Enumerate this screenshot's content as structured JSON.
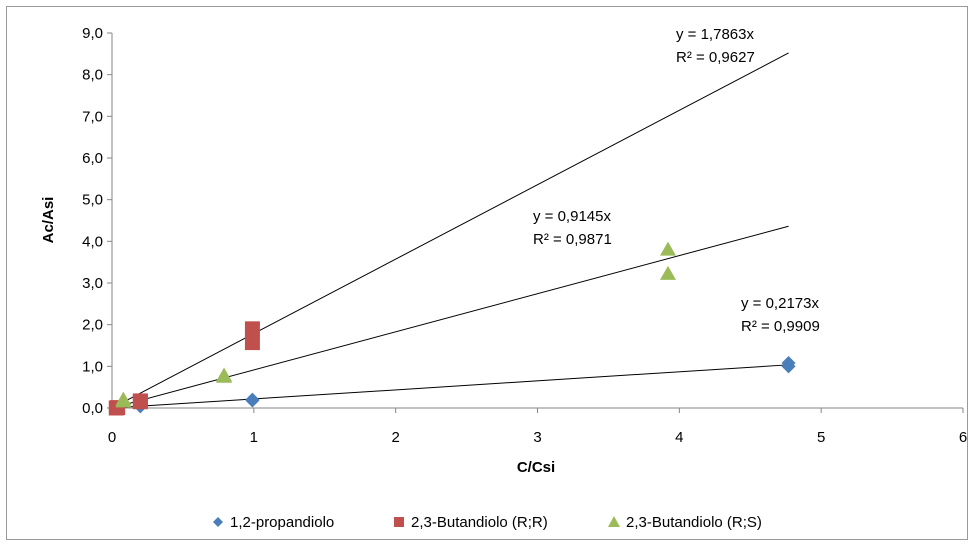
{
  "chart_data": {
    "type": "scatter",
    "xlabel": "C/Csi",
    "ylabel": "Ac/Asi",
    "xlim": [
      0,
      6
    ],
    "ylim": [
      0,
      9
    ],
    "x_ticks": [
      "0",
      "1",
      "2",
      "3",
      "4",
      "5",
      "6"
    ],
    "y_ticks": [
      "0,0",
      "1,0",
      "2,0",
      "3,0",
      "4,0",
      "5,0",
      "6,0",
      "7,0",
      "8,0",
      "9,0"
    ],
    "grid": false,
    "legend_position": "bottom",
    "series": [
      {
        "name": "1,2-propandiolo",
        "marker": "diamond",
        "color": "#4a7ebb",
        "points": [
          [
            0.04,
            0.01
          ],
          [
            0.2,
            0.04
          ],
          [
            0.99,
            0.2
          ],
          [
            0.99,
            0.18
          ],
          [
            4.77,
            1.08
          ],
          [
            4.77,
            1.0
          ]
        ],
        "trendline": {
          "slope": 0.2173,
          "x_end": 4.77,
          "equation": "y = 0,2173x",
          "r2": "R² = 0,9909"
        }
      },
      {
        "name": "2,3-Butandiolo (R;R)",
        "marker": "square",
        "color": "#c0504d",
        "points": [
          [
            0.03,
            0.0
          ],
          [
            0.04,
            0.01
          ],
          [
            0.2,
            0.17
          ],
          [
            0.2,
            0.15
          ],
          [
            0.99,
            1.9
          ],
          [
            0.99,
            1.57
          ]
        ],
        "trendline": {
          "slope": 1.7863,
          "x_end": 4.77,
          "equation": "y = 1,7863x",
          "r2": "R² = 0,9627"
        }
      },
      {
        "name": "2,3-Butandiolo (R;S)",
        "marker": "triangle",
        "color": "#9bbb59",
        "points": [
          [
            0.08,
            0.2
          ],
          [
            0.08,
            0.16
          ],
          [
            0.79,
            0.78
          ],
          [
            0.79,
            0.75
          ],
          [
            3.92,
            3.8
          ],
          [
            3.92,
            3.22
          ]
        ],
        "trendline": {
          "slope": 0.9145,
          "x_end": 4.77,
          "equation": "y = 0,9145x",
          "r2": "R² = 0,9871"
        }
      }
    ]
  }
}
